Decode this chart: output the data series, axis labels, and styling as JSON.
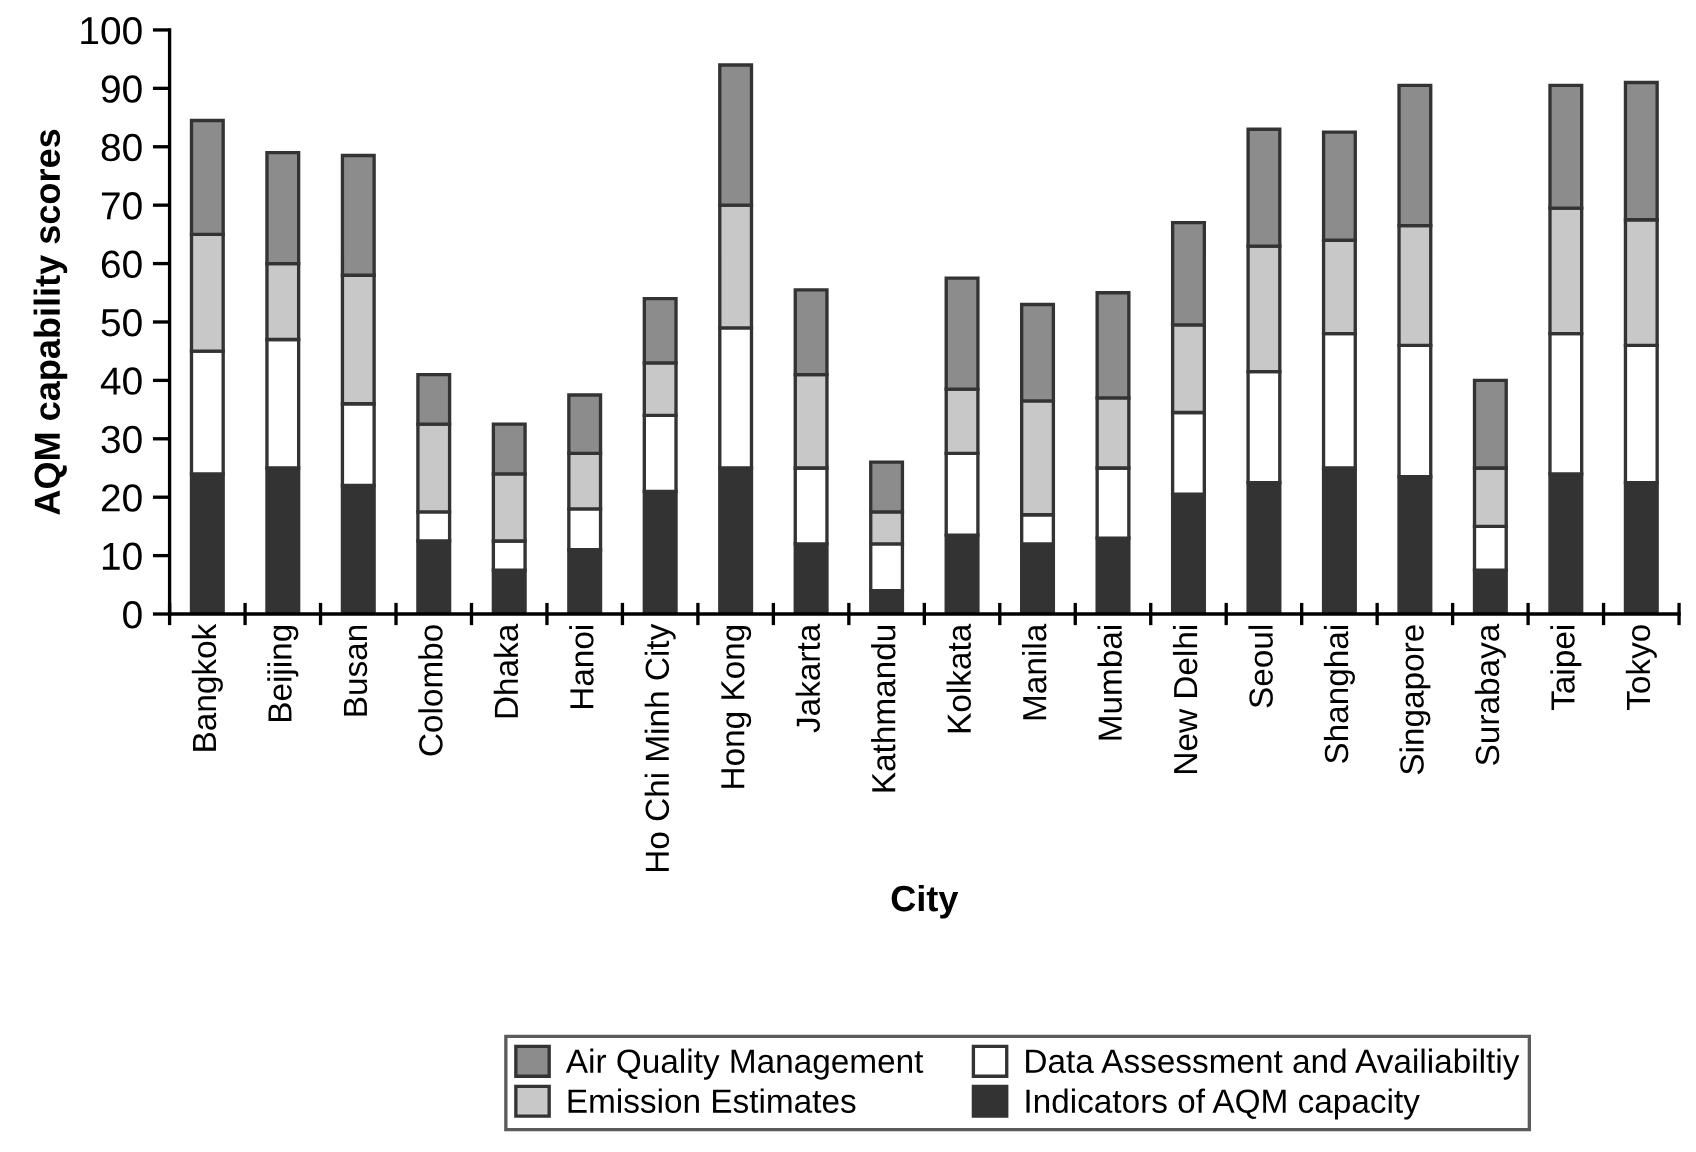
{
  "chart_data": {
    "type": "bar",
    "stacked": true,
    "xlabel": "City",
    "ylabel": "AQM capability scores",
    "categories": [
      "Bangkok",
      "Beijing",
      "Busan",
      "Colombo",
      "Dhaka",
      "Hanoi",
      "Ho Chi Minh City",
      "Hong Kong",
      "Jakarta",
      "Kathmandu",
      "Kolkata",
      "Manila",
      "Mumbai",
      "New Delhi",
      "Seoul",
      "Shanghai",
      "Singapore",
      "Surabaya",
      "Taipei",
      "Tokyo"
    ],
    "series": [
      {
        "name": "Indicators of AQM capacity",
        "color": "#333333",
        "values": [
          24,
          25,
          22,
          12.5,
          7.5,
          11,
          21,
          25,
          12,
          4,
          13.5,
          12,
          13,
          20.5,
          22.5,
          25,
          23.5,
          7.5,
          24,
          22.5
        ]
      },
      {
        "name": "Data Assessment and Availiabiltiy",
        "color": "#ffffff",
        "values": [
          21,
          22,
          14,
          5,
          5,
          7,
          13,
          24,
          13,
          8,
          14,
          5,
          12,
          14,
          19,
          23,
          22.5,
          7.5,
          24,
          23.5
        ]
      },
      {
        "name": "Emission Estimates",
        "color": "#c8c8c8",
        "values": [
          20,
          13,
          22,
          15,
          11.5,
          9.5,
          9,
          21,
          16,
          5.5,
          11,
          19.5,
          12,
          15,
          21.5,
          16,
          20.5,
          10,
          21.5,
          21.5
        ]
      },
      {
        "name": "Air Quality Management",
        "color": "#8c8c8c",
        "values": [
          19.5,
          19,
          20.5,
          8.5,
          8.5,
          10,
          11,
          24,
          14.5,
          8.5,
          19,
          16.5,
          18,
          17.5,
          20,
          18.5,
          24,
          15,
          21,
          23.5
        ]
      }
    ],
    "ylim": [
      0,
      100
    ],
    "yticks": [
      0,
      10,
      20,
      30,
      40,
      50,
      60,
      70,
      80,
      90,
      100
    ],
    "grid": false,
    "legend": "bottom"
  }
}
